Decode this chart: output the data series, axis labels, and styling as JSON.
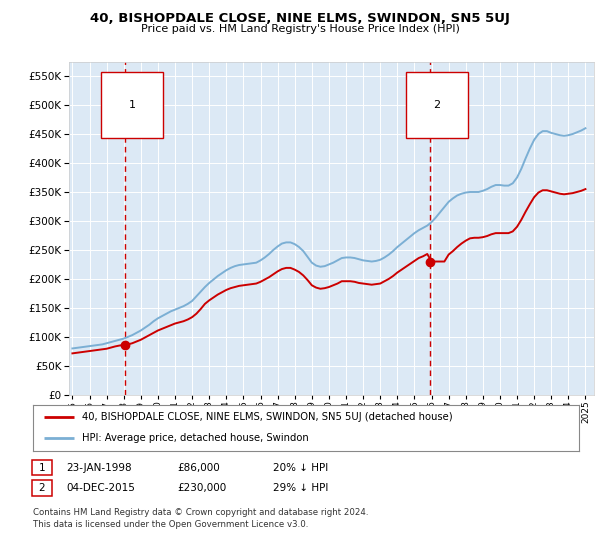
{
  "title": "40, BISHOPDALE CLOSE, NINE ELMS, SWINDON, SN5 5UJ",
  "subtitle": "Price paid vs. HM Land Registry's House Price Index (HPI)",
  "background_color": "#dce9f5",
  "plot_bg_color": "#dce9f5",
  "sale1_date": 1998.07,
  "sale1_price": 86000,
  "sale1_label": "1",
  "sale2_date": 2015.92,
  "sale2_price": 230000,
  "sale2_label": "2",
  "legend_line1": "40, BISHOPDALE CLOSE, NINE ELMS, SWINDON, SN5 5UJ (detached house)",
  "legend_line2": "HPI: Average price, detached house, Swindon",
  "table_row1": [
    "1",
    "23-JAN-1998",
    "£86,000",
    "20% ↓ HPI"
  ],
  "table_row2": [
    "2",
    "04-DEC-2015",
    "£230,000",
    "29% ↓ HPI"
  ],
  "footer": "Contains HM Land Registry data © Crown copyright and database right 2024.\nThis data is licensed under the Open Government Licence v3.0.",
  "red_color": "#cc0000",
  "blue_color": "#7bafd4",
  "dashed_color": "#cc0000",
  "ylim_min": 0,
  "ylim_max": 575000,
  "xlim_min": 1994.8,
  "xlim_max": 2025.5,
  "hpi_years": [
    1995.0,
    1995.25,
    1995.5,
    1995.75,
    1996.0,
    1996.25,
    1996.5,
    1996.75,
    1997.0,
    1997.25,
    1997.5,
    1997.75,
    1998.0,
    1998.25,
    1998.5,
    1998.75,
    1999.0,
    1999.25,
    1999.5,
    1999.75,
    2000.0,
    2000.25,
    2000.5,
    2000.75,
    2001.0,
    2001.25,
    2001.5,
    2001.75,
    2002.0,
    2002.25,
    2002.5,
    2002.75,
    2003.0,
    2003.25,
    2003.5,
    2003.75,
    2004.0,
    2004.25,
    2004.5,
    2004.75,
    2005.0,
    2005.25,
    2005.5,
    2005.75,
    2006.0,
    2006.25,
    2006.5,
    2006.75,
    2007.0,
    2007.25,
    2007.5,
    2007.75,
    2008.0,
    2008.25,
    2008.5,
    2008.75,
    2009.0,
    2009.25,
    2009.5,
    2009.75,
    2010.0,
    2010.25,
    2010.5,
    2010.75,
    2011.0,
    2011.25,
    2011.5,
    2011.75,
    2012.0,
    2012.25,
    2012.5,
    2012.75,
    2013.0,
    2013.25,
    2013.5,
    2013.75,
    2014.0,
    2014.25,
    2014.5,
    2014.75,
    2015.0,
    2015.25,
    2015.5,
    2015.75,
    2016.0,
    2016.25,
    2016.5,
    2016.75,
    2017.0,
    2017.25,
    2017.5,
    2017.75,
    2018.0,
    2018.25,
    2018.5,
    2018.75,
    2019.0,
    2019.25,
    2019.5,
    2019.75,
    2020.0,
    2020.25,
    2020.5,
    2020.75,
    2021.0,
    2021.25,
    2021.5,
    2021.75,
    2022.0,
    2022.25,
    2022.5,
    2022.75,
    2023.0,
    2023.25,
    2023.5,
    2023.75,
    2024.0,
    2024.25,
    2024.5,
    2024.75,
    2025.0
  ],
  "hpi_values": [
    80000,
    81000,
    82000,
    83000,
    84000,
    85000,
    86000,
    87000,
    89000,
    91000,
    93000,
    95000,
    97000,
    100000,
    103000,
    107000,
    111000,
    116000,
    121000,
    127000,
    132000,
    136000,
    140000,
    144000,
    147000,
    150000,
    153000,
    157000,
    162000,
    170000,
    178000,
    186000,
    193000,
    199000,
    205000,
    210000,
    215000,
    219000,
    222000,
    224000,
    225000,
    226000,
    227000,
    228000,
    232000,
    237000,
    243000,
    250000,
    256000,
    261000,
    263000,
    263000,
    260000,
    255000,
    248000,
    238000,
    228000,
    223000,
    221000,
    222000,
    225000,
    228000,
    232000,
    236000,
    237000,
    237000,
    236000,
    234000,
    232000,
    231000,
    230000,
    231000,
    233000,
    237000,
    242000,
    248000,
    255000,
    261000,
    267000,
    273000,
    279000,
    284000,
    288000,
    292000,
    298000,
    306000,
    315000,
    324000,
    333000,
    339000,
    344000,
    347000,
    349000,
    350000,
    350000,
    350000,
    352000,
    355000,
    359000,
    362000,
    362000,
    361000,
    361000,
    365000,
    375000,
    390000,
    408000,
    425000,
    440000,
    450000,
    455000,
    455000,
    452000,
    450000,
    448000,
    447000,
    448000,
    450000,
    453000,
    456000,
    460000
  ],
  "red_years": [
    1995.0,
    1995.25,
    1995.5,
    1995.75,
    1996.0,
    1996.25,
    1996.5,
    1996.75,
    1997.0,
    1997.25,
    1997.5,
    1997.75,
    1998.0,
    1998.25,
    1998.5,
    1998.75,
    1999.0,
    1999.25,
    1999.5,
    1999.75,
    2000.0,
    2000.25,
    2000.5,
    2000.75,
    2001.0,
    2001.25,
    2001.5,
    2001.75,
    2002.0,
    2002.25,
    2002.5,
    2002.75,
    2003.0,
    2003.25,
    2003.5,
    2003.75,
    2004.0,
    2004.25,
    2004.5,
    2004.75,
    2005.0,
    2005.25,
    2005.5,
    2005.75,
    2006.0,
    2006.25,
    2006.5,
    2006.75,
    2007.0,
    2007.25,
    2007.5,
    2007.75,
    2008.0,
    2008.25,
    2008.5,
    2008.75,
    2009.0,
    2009.25,
    2009.5,
    2009.75,
    2010.0,
    2010.25,
    2010.5,
    2010.75,
    2011.0,
    2011.25,
    2011.5,
    2011.75,
    2012.0,
    2012.25,
    2012.5,
    2012.75,
    2013.0,
    2013.25,
    2013.5,
    2013.75,
    2014.0,
    2014.25,
    2014.5,
    2014.75,
    2015.0,
    2015.25,
    2015.5,
    2015.75,
    2016.0,
    2016.25,
    2016.5,
    2016.75,
    2017.0,
    2017.25,
    2017.5,
    2017.75,
    2018.0,
    2018.25,
    2018.5,
    2018.75,
    2019.0,
    2019.25,
    2019.5,
    2019.75,
    2020.0,
    2020.25,
    2020.5,
    2020.75,
    2021.0,
    2021.25,
    2021.5,
    2021.75,
    2022.0,
    2022.25,
    2022.5,
    2022.75,
    2023.0,
    2023.25,
    2023.5,
    2023.75,
    2024.0,
    2024.25,
    2024.5,
    2024.75,
    2025.0
  ],
  "red_values": [
    71500,
    72500,
    73500,
    74500,
    75500,
    76500,
    77500,
    78500,
    79500,
    81500,
    83500,
    85000,
    86000,
    87000,
    89000,
    92000,
    95000,
    99000,
    103000,
    107000,
    111000,
    114000,
    117000,
    120000,
    123000,
    125000,
    127000,
    130000,
    134000,
    140000,
    148000,
    157000,
    163000,
    168000,
    173000,
    177000,
    181000,
    184000,
    186000,
    188000,
    189000,
    190000,
    191000,
    192000,
    195000,
    199000,
    203000,
    208000,
    213000,
    217000,
    219000,
    219000,
    216000,
    212000,
    206000,
    198000,
    189000,
    185000,
    183000,
    184000,
    186000,
    189000,
    192000,
    196000,
    196000,
    196000,
    195000,
    193000,
    192000,
    191000,
    190000,
    191000,
    192000,
    196000,
    200000,
    205000,
    211000,
    216000,
    221000,
    226000,
    231000,
    236000,
    239000,
    243000,
    230000,
    230000,
    230000,
    230000,
    242000,
    248000,
    255000,
    261000,
    266000,
    270000,
    271000,
    271000,
    272000,
    274000,
    277000,
    279000,
    279000,
    279000,
    279000,
    282000,
    290000,
    302000,
    316000,
    329000,
    341000,
    349000,
    353000,
    353000,
    351000,
    349000,
    347000,
    346000,
    347000,
    348000,
    350000,
    352000,
    355000
  ]
}
